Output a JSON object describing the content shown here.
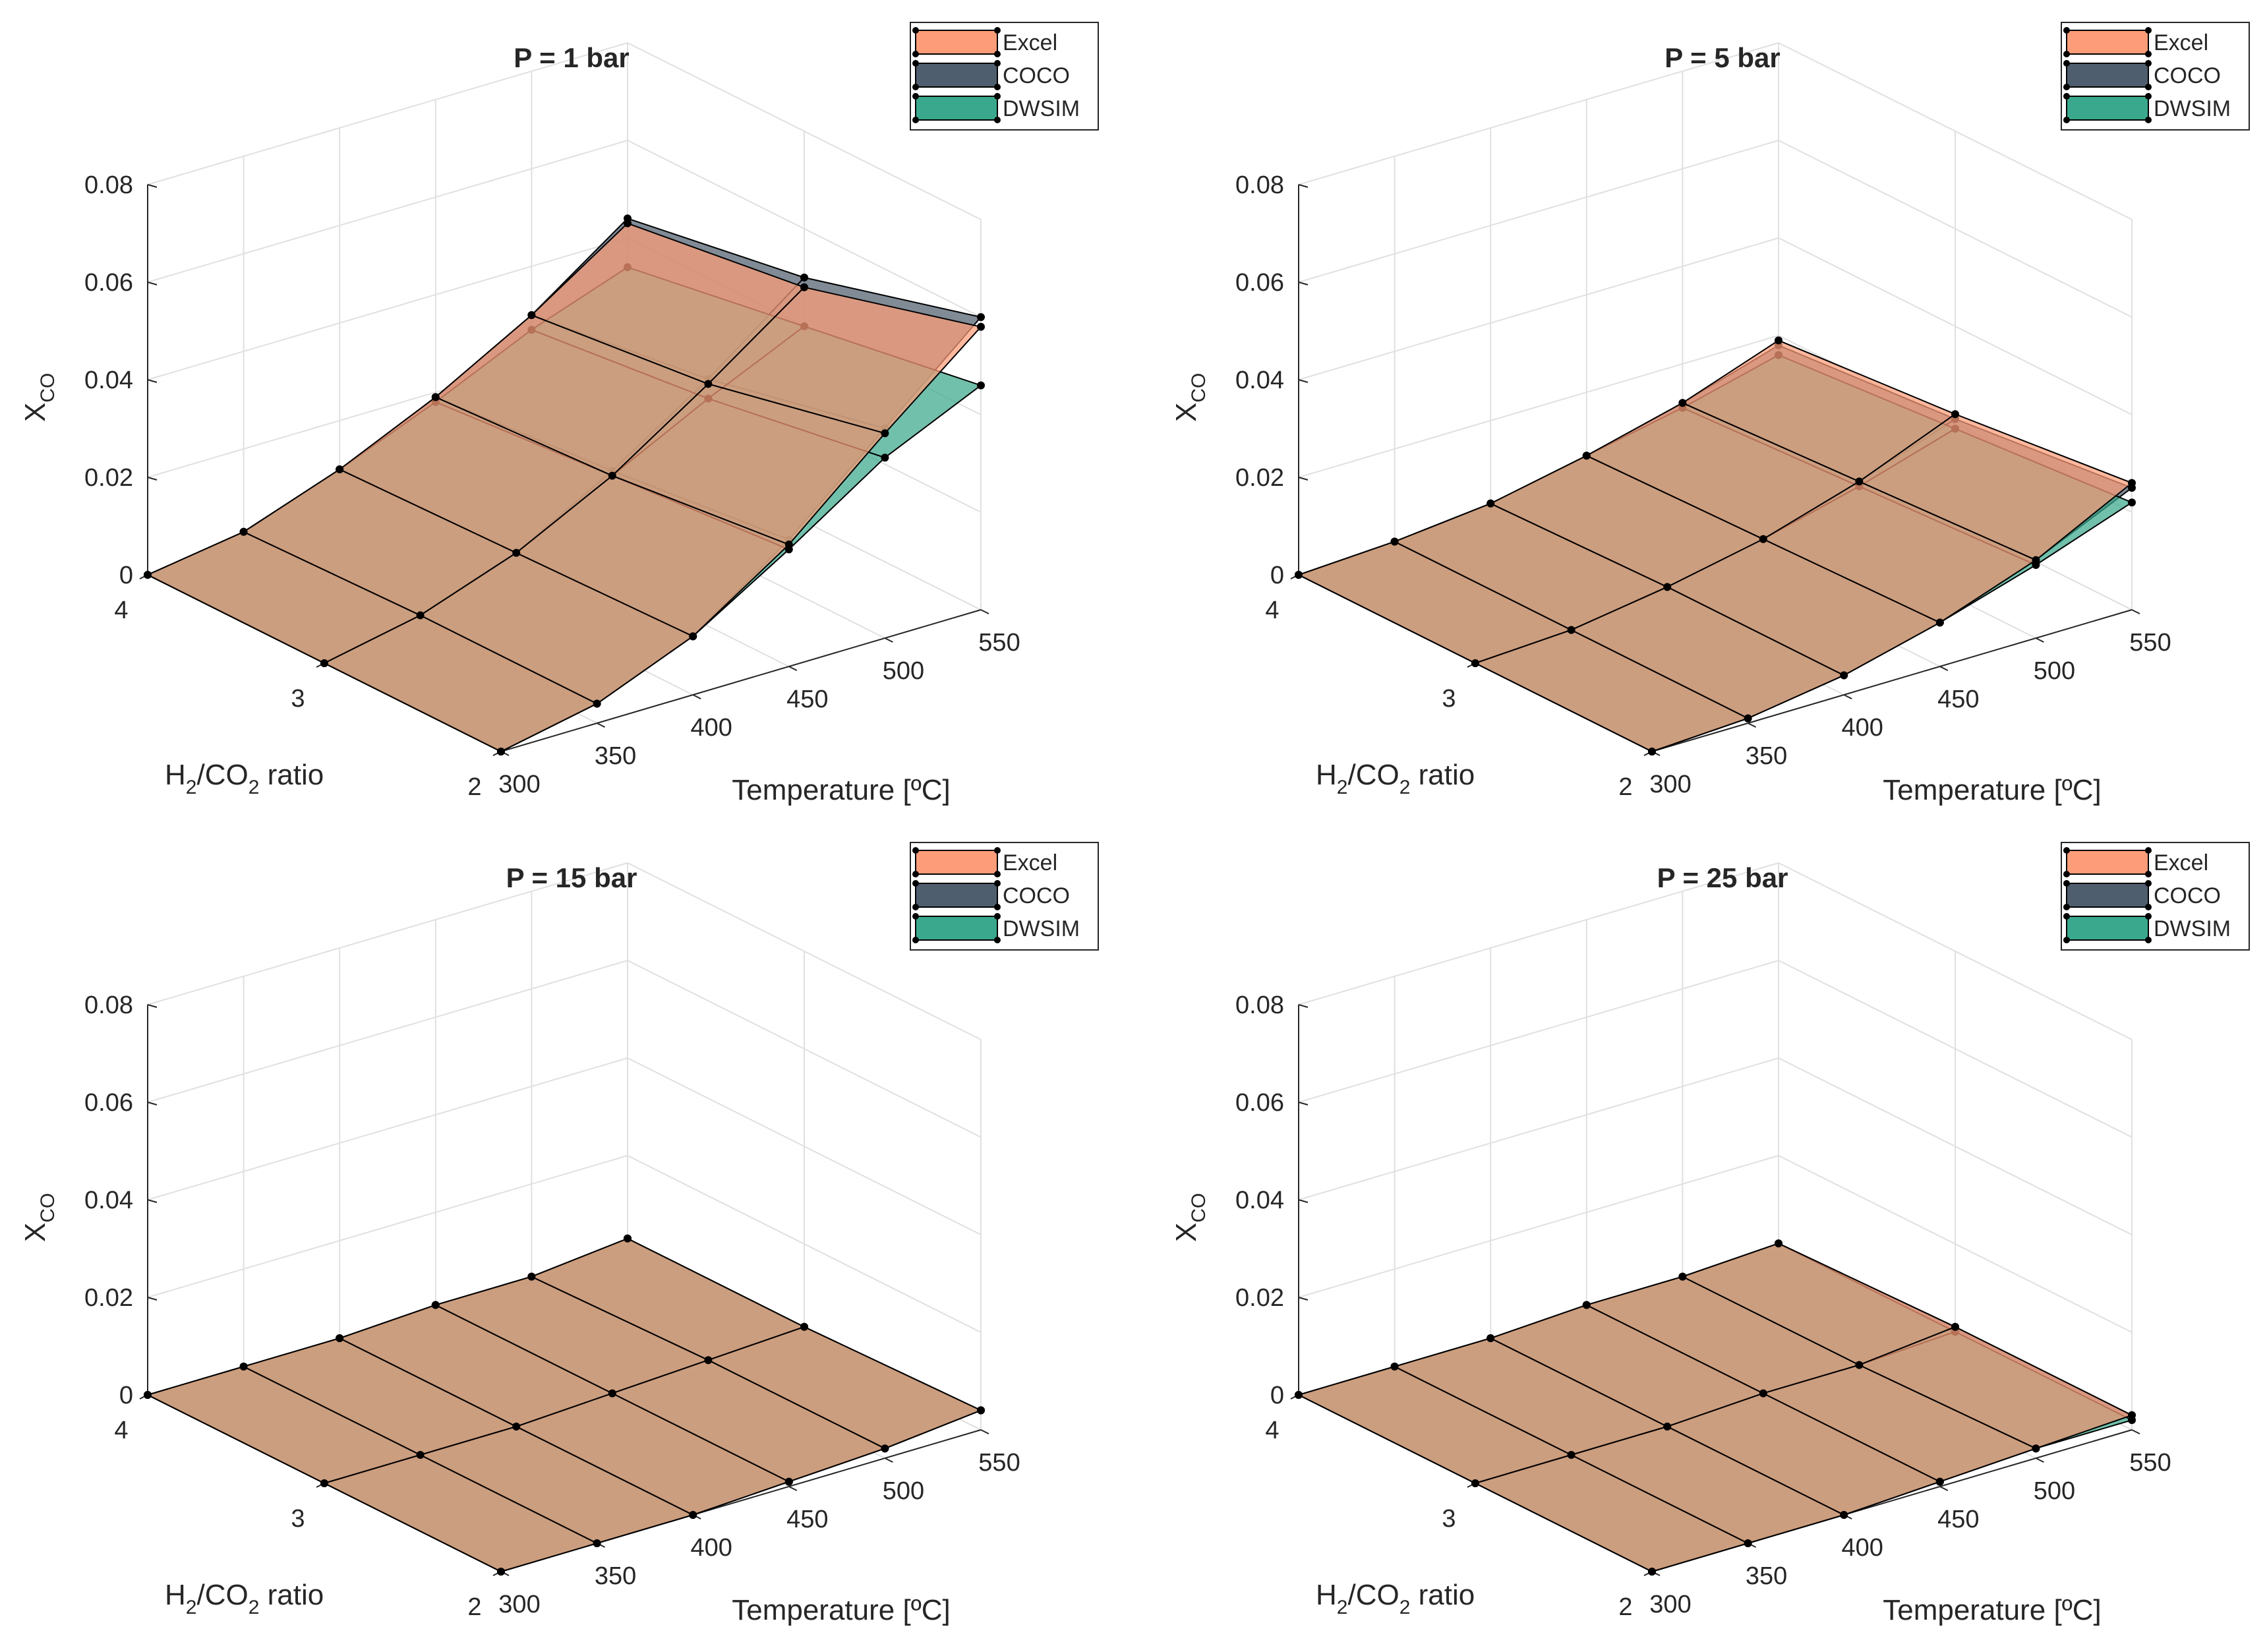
{
  "figure": {
    "legend_entries": [
      "Excel",
      "COCO",
      "DWSIM"
    ],
    "colors": {
      "Excel": "#fc9c78",
      "COCO": "#4f5e6e",
      "DWSIM": "#3aa88c",
      "mesh": "#000000",
      "grid": "#e0e0e0",
      "axis": "#262626"
    }
  },
  "chart_data": [
    {
      "type": "surface3d",
      "title": "P = 1 bar",
      "ylabel": {
        "main": "X",
        "sub": "CO"
      },
      "ratio_label": {
        "p1": "H",
        "s1": "2",
        "p2": "/CO",
        "s2": "2",
        "p3": " ratio"
      },
      "xlabel": "Temperature [ºC]",
      "temperature": [
        300,
        350,
        400,
        450,
        500,
        550
      ],
      "temperature_ticks": [
        "300",
        "350",
        "400",
        "450",
        "500",
        "550"
      ],
      "ratio": [
        2,
        3,
        4
      ],
      "ratio_ticks": [
        "2",
        "3",
        "4"
      ],
      "z_ticks": [
        "0",
        "0.02",
        "0.04",
        "0.06",
        "0.08"
      ],
      "zlim": [
        0,
        0.08
      ],
      "legend": [
        "Excel",
        "COCO",
        "DWSIM"
      ],
      "series": [
        {
          "name": "Excel",
          "values": [
            [
              0,
              0.004,
              0.012,
              0.025,
              0.042,
              0.058
            ],
            [
              0,
              0.004,
              0.011,
              0.021,
              0.034,
              0.048
            ],
            [
              0,
              0.003,
              0.01,
              0.019,
              0.03,
              0.043
            ]
          ]
        },
        {
          "name": "COCO",
          "values": [
            [
              0,
              0.004,
              0.012,
              0.026,
              0.043,
              0.06
            ],
            [
              0,
              0.004,
              0.011,
              0.022,
              0.035,
              0.05
            ],
            [
              0,
              0.003,
              0.01,
              0.019,
              0.03,
              0.044
            ]
          ]
        },
        {
          "name": "DWSIM",
          "values": [
            [
              0,
              0.004,
              0.012,
              0.024,
              0.037,
              0.046
            ],
            [
              0,
              0.004,
              0.011,
              0.021,
              0.031,
              0.04
            ],
            [
              0,
              0.003,
              0.01,
              0.018,
              0.027,
              0.034
            ]
          ]
        }
      ]
    },
    {
      "type": "surface3d",
      "title": "P = 5 bar",
      "ylabel": {
        "main": "X",
        "sub": "CO"
      },
      "ratio_label": {
        "p1": "H",
        "s1": "2",
        "p2": "/CO",
        "s2": "2",
        "p3": " ratio"
      },
      "xlabel": "Temperature [ºC]",
      "temperature": [
        300,
        350,
        400,
        450,
        500,
        550
      ],
      "temperature_ticks": [
        "300",
        "350",
        "400",
        "450",
        "500",
        "550"
      ],
      "ratio": [
        2,
        3,
        4
      ],
      "ratio_ticks": [
        "2",
        "3",
        "4"
      ],
      "z_ticks": [
        "0",
        "0.02",
        "0.04",
        "0.06",
        "0.08"
      ],
      "zlim": [
        0,
        0.08
      ],
      "legend": [
        "Excel",
        "COCO",
        "DWSIM"
      ],
      "series": [
        {
          "name": "Excel",
          "values": [
            [
              0,
              0.001,
              0.004,
              0.009,
              0.016,
              0.026
            ],
            [
              0,
              0.001,
              0.004,
              0.008,
              0.014,
              0.022
            ],
            [
              0,
              0.001,
              0.003,
              0.007,
              0.012,
              0.019
            ]
          ]
        },
        {
          "name": "COCO",
          "values": [
            [
              0,
              0.001,
              0.004,
              0.009,
              0.016,
              0.025
            ],
            [
              0,
              0.001,
              0.004,
              0.008,
              0.014,
              0.021
            ],
            [
              0,
              0.001,
              0.003,
              0.007,
              0.012,
              0.018
            ]
          ]
        },
        {
          "name": "DWSIM",
          "values": [
            [
              0,
              0.001,
              0.004,
              0.009,
              0.015,
              0.022
            ],
            [
              0,
              0.001,
              0.004,
              0.008,
              0.013,
              0.019
            ],
            [
              0,
              0.001,
              0.003,
              0.007,
              0.011,
              0.016
            ]
          ]
        }
      ]
    },
    {
      "type": "surface3d",
      "title": "P = 15 bar",
      "ylabel": {
        "main": "X",
        "sub": "CO"
      },
      "ratio_label": {
        "p1": "H",
        "s1": "2",
        "p2": "/CO",
        "s2": "2",
        "p3": " ratio"
      },
      "xlabel": "Temperature [ºC]",
      "temperature": [
        300,
        350,
        400,
        450,
        500,
        550
      ],
      "temperature_ticks": [
        "300",
        "350",
        "400",
        "450",
        "500",
        "550"
      ],
      "ratio": [
        2,
        3,
        4
      ],
      "ratio_ticks": [
        "2",
        "3",
        "4"
      ],
      "z_ticks": [
        "0",
        "0.02",
        "0.04",
        "0.06",
        "0.08"
      ],
      "zlim": [
        0,
        0.08
      ],
      "legend": [
        "Excel",
        "COCO",
        "DWSIM"
      ],
      "series": [
        {
          "name": "Excel",
          "values": [
            [
              0,
              0,
              0,
              0.001,
              0.002,
              0.004
            ],
            [
              0,
              0,
              0,
              0.001,
              0.002,
              0.003
            ],
            [
              0,
              0,
              0,
              0.001,
              0.001,
              0.003
            ]
          ]
        },
        {
          "name": "COCO",
          "values": [
            [
              0,
              0,
              0,
              0.001,
              0.002,
              0.004
            ],
            [
              0,
              0,
              0,
              0.001,
              0.002,
              0.003
            ],
            [
              0,
              0,
              0,
              0.001,
              0.001,
              0.003
            ]
          ]
        },
        {
          "name": "DWSIM",
          "values": [
            [
              0,
              0,
              0,
              0.001,
              0.002,
              0.004
            ],
            [
              0,
              0,
              0,
              0.001,
              0.002,
              0.003
            ],
            [
              0,
              0,
              0,
              0.001,
              0.001,
              0.003
            ]
          ]
        }
      ]
    },
    {
      "type": "surface3d",
      "title": "P = 25 bar",
      "ylabel": {
        "main": "X",
        "sub": "CO"
      },
      "ratio_label": {
        "p1": "H",
        "s1": "2",
        "p2": "/CO",
        "s2": "2",
        "p3": " ratio"
      },
      "xlabel": "Temperature [ºC]",
      "temperature": [
        300,
        350,
        400,
        450,
        500,
        550
      ],
      "temperature_ticks": [
        "300",
        "350",
        "400",
        "450",
        "500",
        "550"
      ],
      "ratio": [
        2,
        3,
        4
      ],
      "ratio_ticks": [
        "2",
        "3",
        "4"
      ],
      "z_ticks": [
        "0",
        "0.02",
        "0.04",
        "0.06",
        "0.08"
      ],
      "zlim": [
        0,
        0.08
      ],
      "legend": [
        "Excel",
        "COCO",
        "DWSIM"
      ],
      "series": [
        {
          "name": "Excel",
          "values": [
            [
              0,
              0,
              0,
              0.001,
              0.002,
              0.003
            ],
            [
              0,
              0,
              0,
              0.001,
              0.001,
              0.003
            ],
            [
              0,
              0,
              0,
              0.001,
              0.001,
              0.002
            ]
          ]
        },
        {
          "name": "COCO",
          "values": [
            [
              0,
              0,
              0,
              0.001,
              0.002,
              0.003
            ],
            [
              0,
              0,
              0,
              0.001,
              0.001,
              0.003
            ],
            [
              0,
              0,
              0,
              0.001,
              0.001,
              0.002
            ]
          ]
        },
        {
          "name": "DWSIM",
          "values": [
            [
              0,
              0,
              0,
              0.001,
              0.002,
              0.002
            ],
            [
              0,
              0,
              0,
              0.001,
              0.001,
              0.002
            ],
            [
              0,
              0,
              0,
              0.001,
              0.001,
              0.002
            ]
          ]
        }
      ]
    }
  ]
}
